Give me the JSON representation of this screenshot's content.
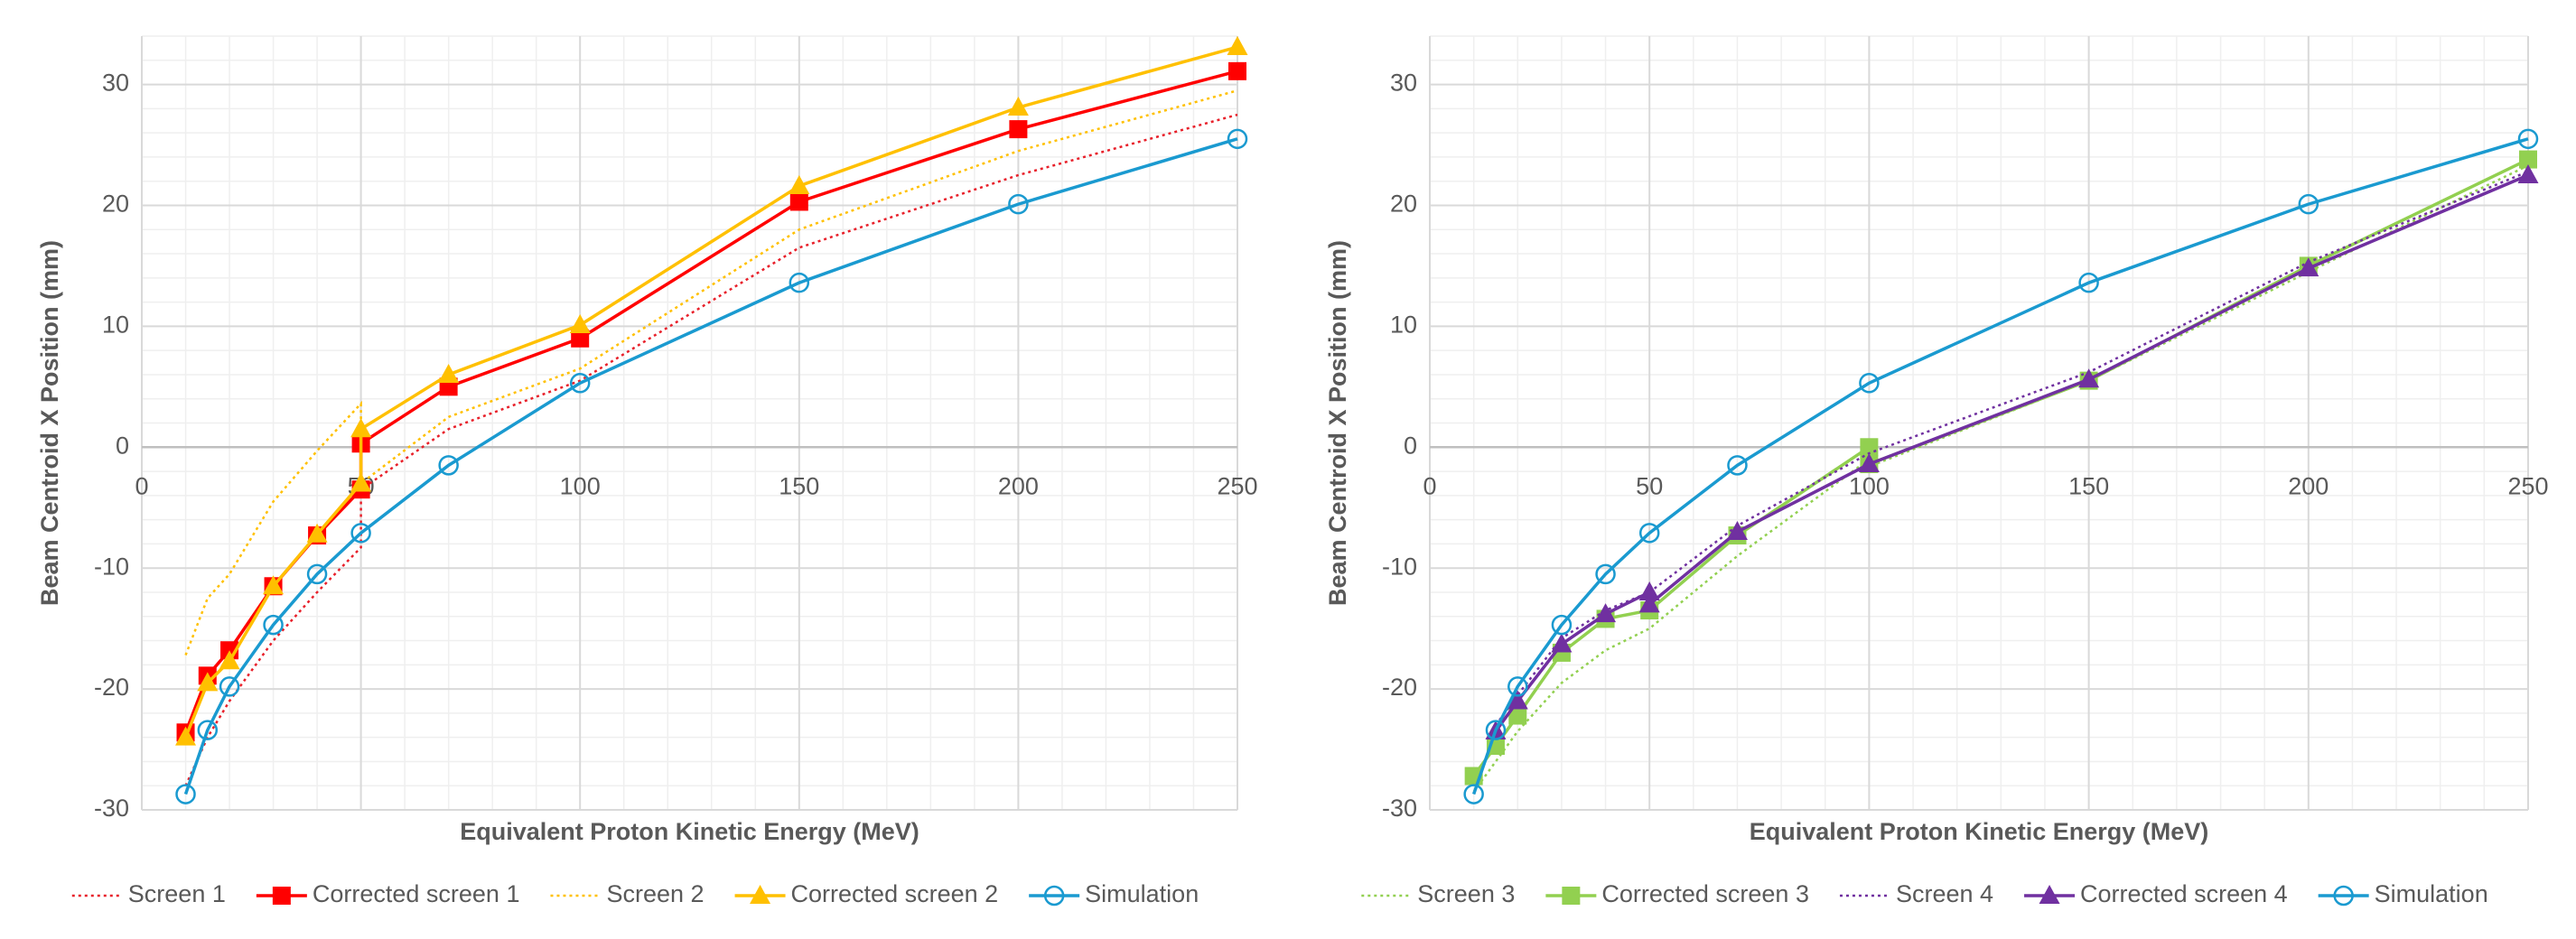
{
  "chart_data": [
    {
      "type": "line",
      "x_label": "Equivalent Proton Kinetic Energy (MeV)",
      "y_label": "Beam Centroid X Position (mm)",
      "xlim": [
        0,
        250
      ],
      "ylim": [
        -30,
        34
      ],
      "xticks": [
        0,
        50,
        100,
        150,
        200,
        250
      ],
      "yticks": [
        -30,
        -20,
        -10,
        0,
        10,
        20,
        30
      ],
      "grid": true,
      "minor_grid": true,
      "legend": "bottom",
      "series": [
        {
          "name": "Screen 1",
          "color": "#e8202a",
          "line_style": "dotted",
          "marker": "none",
          "x": [
            10,
            15,
            20,
            30,
            40,
            50,
            50,
            70,
            100,
            150,
            200,
            250
          ],
          "values": [
            -28,
            -24,
            -21,
            -16,
            -12,
            -8.3,
            -3.5,
            1.5,
            5.5,
            16.5,
            22.5,
            27.5
          ]
        },
        {
          "name": "Corrected screen 1",
          "color": "#ff0000",
          "line_style": "solid",
          "marker": "square",
          "x": [
            10,
            15,
            20,
            30,
            40,
            50,
            50,
            70,
            100,
            150,
            200,
            250
          ],
          "values": [
            -23.6,
            -18.9,
            -16.8,
            -11.5,
            -7.3,
            -3.5,
            0.3,
            5,
            9,
            20.3,
            26.3,
            31.1
          ]
        },
        {
          "name": "Screen 2",
          "color": "#ffc000",
          "line_style": "dotted",
          "marker": "none",
          "x": [
            10,
            15,
            20,
            30,
            40,
            50,
            50,
            70,
            100,
            150,
            200,
            250
          ],
          "values": [
            -17.2,
            -12.5,
            -10.5,
            -4.5,
            -0.3,
            3.6,
            -3,
            2.5,
            6.5,
            18,
            24.5,
            29.5
          ]
        },
        {
          "name": "Corrected screen 2",
          "color": "#ffc000",
          "line_style": "solid",
          "marker": "triangle",
          "x": [
            10,
            15,
            20,
            30,
            40,
            50,
            50,
            70,
            100,
            150,
            200,
            250
          ],
          "values": [
            -24,
            -19.5,
            -17.7,
            -11.5,
            -7.2,
            -3,
            1.5,
            6,
            10.1,
            21.6,
            28.1,
            33.1
          ]
        },
        {
          "name": "Simulation",
          "color": "#1a9ad0",
          "line_style": "solid",
          "marker": "circle",
          "x": [
            10,
            15,
            20,
            30,
            40,
            50,
            70,
            100,
            150,
            200,
            250
          ],
          "values": [
            -28.7,
            -23.4,
            -19.8,
            -14.7,
            -10.5,
            -7.1,
            -1.5,
            5.3,
            13.6,
            20.1,
            25.5
          ]
        }
      ]
    },
    {
      "type": "line",
      "x_label": "Equivalent Proton Kinetic Energy (MeV)",
      "y_label": "Beam Centroid X Position (mm)",
      "xlim": [
        0,
        250
      ],
      "ylim": [
        -30,
        34
      ],
      "xticks": [
        0,
        50,
        100,
        150,
        200,
        250
      ],
      "yticks": [
        -30,
        -20,
        -10,
        0,
        10,
        20,
        30
      ],
      "grid": true,
      "minor_grid": true,
      "legend": "bottom",
      "series": [
        {
          "name": "Screen 3",
          "color": "#92d050",
          "line_style": "dotted",
          "marker": "none",
          "x": [
            10,
            15,
            20,
            30,
            40,
            50,
            70,
            100,
            100,
            150,
            200,
            250
          ],
          "values": [
            -28.5,
            -26,
            -23.5,
            -19.5,
            -16.8,
            -15,
            -9,
            -1,
            -1.6,
            5.5,
            14.5,
            23.3
          ]
        },
        {
          "name": "Corrected screen 3",
          "color": "#92d050",
          "line_style": "solid",
          "marker": "square",
          "x": [
            10,
            15,
            20,
            30,
            40,
            50,
            70,
            100,
            100,
            150,
            200,
            250
          ],
          "values": [
            -27.2,
            -24.7,
            -22.2,
            -17,
            -14.2,
            -13.5,
            -7.3,
            0,
            -1.4,
            5.5,
            15,
            23.8
          ]
        },
        {
          "name": "Screen 4",
          "color": "#7030a0",
          "line_style": "dotted",
          "marker": "none",
          "x": [
            15,
            20,
            30,
            40,
            50,
            70,
            100,
            150,
            200,
            250
          ],
          "values": [
            -23,
            -20.5,
            -15.8,
            -13.5,
            -12,
            -6.5,
            -0.5,
            6.2,
            15.3,
            22.8
          ]
        },
        {
          "name": "Corrected screen 4",
          "color": "#7030a0",
          "line_style": "solid",
          "marker": "triangle",
          "x": [
            15,
            20,
            30,
            40,
            50,
            50,
            70,
            100,
            150,
            200,
            250
          ],
          "values": [
            -23.5,
            -21,
            -16.3,
            -13.8,
            -12,
            -13,
            -7,
            -1.4,
            5.6,
            14.8,
            22.5
          ]
        },
        {
          "name": "Simulation",
          "color": "#1a9ad0",
          "line_style": "solid",
          "marker": "circle",
          "x": [
            10,
            15,
            20,
            30,
            40,
            50,
            70,
            100,
            150,
            200,
            250
          ],
          "values": [
            -28.7,
            -23.4,
            -19.8,
            -14.7,
            -10.5,
            -7.1,
            -1.5,
            5.3,
            13.6,
            20.1,
            25.5
          ]
        }
      ]
    }
  ]
}
